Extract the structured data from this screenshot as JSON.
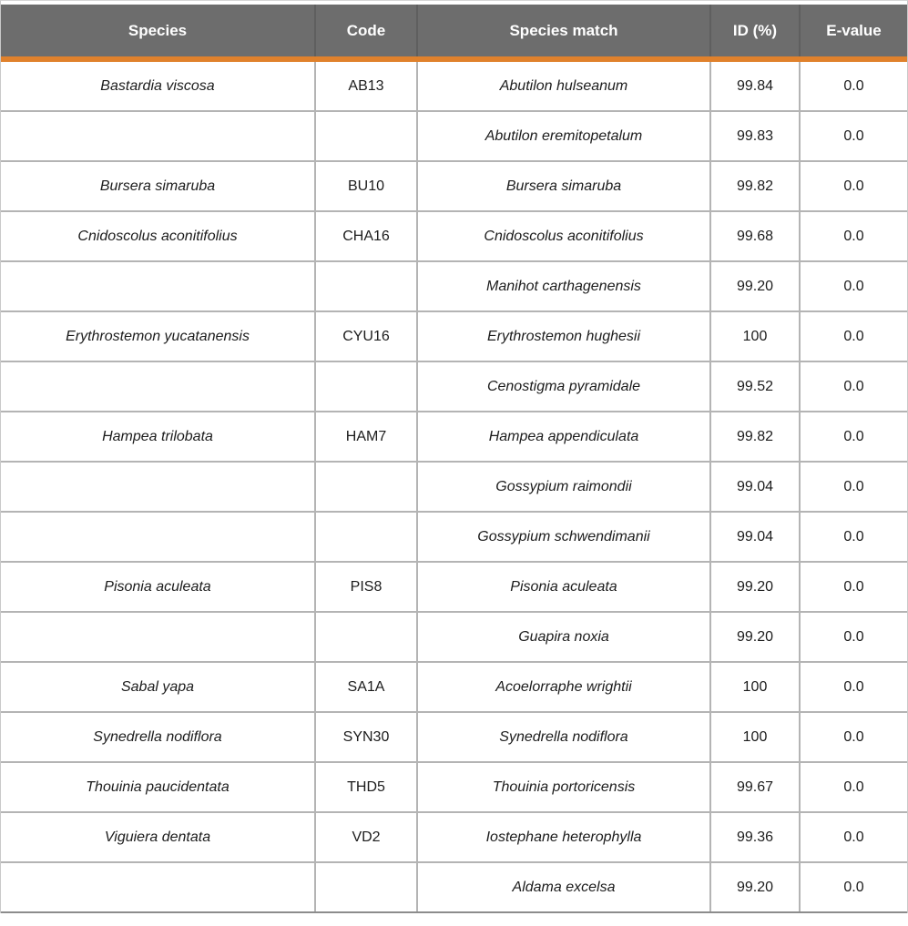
{
  "colors": {
    "header_bg": "#6d6d6d",
    "header_text": "#ffffff",
    "accent_orange": "#e0812c",
    "grid_line": "#b4b4b4",
    "outer_border": "#c9c9c9",
    "bottom_border": "#8c8c8c",
    "body_text": "#1c1c1c"
  },
  "table": {
    "columns": [
      {
        "label": "Species"
      },
      {
        "label": "Code"
      },
      {
        "label": "Species match"
      },
      {
        "label": "ID (%)"
      },
      {
        "label": "E-value"
      }
    ],
    "rows": [
      {
        "species": "Bastardia viscosa",
        "code": "AB13",
        "match": "Abutilon hulseanum",
        "id": "99.84",
        "evalue": "0.0"
      },
      {
        "species": "",
        "code": "",
        "match": "Abutilon eremitopetalum",
        "id": "99.83",
        "evalue": "0.0"
      },
      {
        "species": "Bursera simaruba",
        "code": "BU10",
        "match": "Bursera simaruba",
        "id": "99.82",
        "evalue": "0.0"
      },
      {
        "species": "Cnidoscolus aconitifolius",
        "code": "CHA16",
        "match": "Cnidoscolus aconitifolius",
        "id": "99.68",
        "evalue": "0.0"
      },
      {
        "species": "",
        "code": "",
        "match": "Manihot carthagenensis",
        "id": "99.20",
        "evalue": "0.0"
      },
      {
        "species": "Erythrostemon yucatanensis",
        "code": "CYU16",
        "match": "Erythrostemon hughesii",
        "id": "100",
        "evalue": "0.0"
      },
      {
        "species": "",
        "code": "",
        "match": "Cenostigma pyramidale",
        "id": "99.52",
        "evalue": "0.0"
      },
      {
        "species": "Hampea trilobata",
        "code": "HAM7",
        "match": "Hampea appendiculata",
        "id": "99.82",
        "evalue": "0.0"
      },
      {
        "species": "",
        "code": "",
        "match": "Gossypium raimondii",
        "id": "99.04",
        "evalue": "0.0"
      },
      {
        "species": "",
        "code": "",
        "match": "Gossypium schwendimanii",
        "id": "99.04",
        "evalue": "0.0"
      },
      {
        "species": "Pisonia aculeata",
        "code": "PIS8",
        "match": "Pisonia aculeata",
        "id": "99.20",
        "evalue": "0.0"
      },
      {
        "species": "",
        "code": "",
        "match": "Guapira noxia",
        "id": "99.20",
        "evalue": "0.0"
      },
      {
        "species": "Sabal yapa",
        "code": "SA1A",
        "match": "Acoelorraphe wrightii",
        "id": "100",
        "evalue": "0.0"
      },
      {
        "species": "Synedrella nodiflora",
        "code": "SYN30",
        "match": "Synedrella nodiflora",
        "id": "100",
        "evalue": "0.0"
      },
      {
        "species": "Thouinia paucidentata",
        "code": "THD5",
        "match": "Thouinia portoricensis",
        "id": "99.67",
        "evalue": "0.0"
      },
      {
        "species": "Viguiera dentata",
        "code": "VD2",
        "match": "Iostephane heterophylla",
        "id": "99.36",
        "evalue": "0.0"
      },
      {
        "species": "",
        "code": "",
        "match": "Aldama excelsa",
        "id": "99.20",
        "evalue": "0.0"
      }
    ]
  }
}
